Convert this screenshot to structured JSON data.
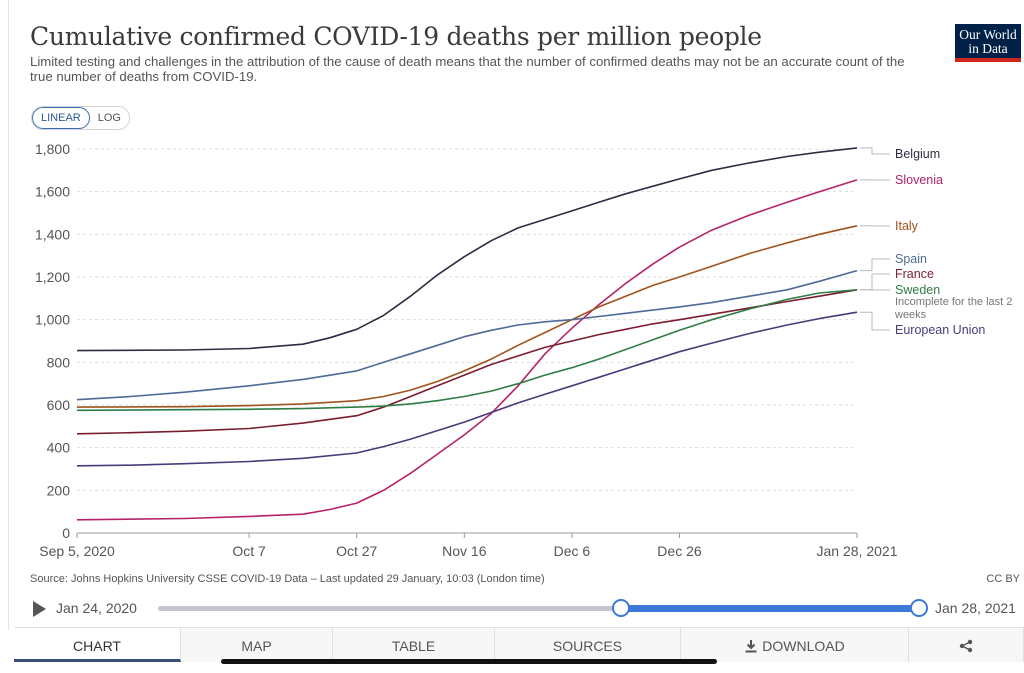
{
  "header": {
    "title": "Cumulative confirmed COVID-19 deaths per million people",
    "subtitle": "Limited testing and challenges in the attribution of the cause of death means that the number of confirmed deaths may not be an accurate count of the true number of deaths from COVID-19.",
    "logo_line1": "Our World",
    "logo_line2": "in Data"
  },
  "scale_toggle": {
    "linear_label": "LINEAR",
    "log_label": "LOG",
    "selected": "LINEAR"
  },
  "footer": {
    "source": "Source: Johns Hopkins University CSSE COVID-19 Data – Last updated 29 January, 10:03 (London time)",
    "license": "CC BY"
  },
  "timeline": {
    "start_label": "Jan 24, 2020",
    "end_label": "Jan 28, 2021"
  },
  "tabs": [
    {
      "label": "CHART",
      "active": true
    },
    {
      "label": "MAP"
    },
    {
      "label": "TABLE"
    },
    {
      "label": "SOURCES"
    },
    {
      "label": "DOWNLOAD",
      "icon": "download-icon"
    },
    {
      "label": "",
      "icon": "share-icon"
    }
  ],
  "colors": {
    "Belgium": "#2b2d42",
    "Slovenia": "#b4236a",
    "Italy": "#a0521c",
    "Spain": "#4f6a96",
    "France": "#7a1d2e",
    "Sweden": "#2e7d46",
    "European Union": "#4a3a7a",
    "accent": "#3b78d8",
    "logo_bg": "#002147",
    "logo_bar": "#ce261e"
  },
  "chart_data": {
    "type": "line",
    "title": "Cumulative confirmed COVID-19 deaths per million people",
    "ylim": [
      0,
      1800
    ],
    "yticks": [
      0,
      200,
      400,
      600,
      800,
      1000,
      1200,
      1400,
      1600,
      1800
    ],
    "ytick_labels": [
      "0",
      "200",
      "400",
      "600",
      "800",
      "1,000",
      "1,200",
      "1,400",
      "1,600",
      "1,800"
    ],
    "xlim": [
      "2020-09-05",
      "2021-01-28"
    ],
    "xticks": [
      "2020-09-05",
      "2020-10-07",
      "2020-10-27",
      "2020-11-16",
      "2020-12-06",
      "2020-12-26",
      "2021-01-28"
    ],
    "xtick_labels": [
      "Sep 5, 2020",
      "Oct 7",
      "Oct 27",
      "Nov 16",
      "Dec 6",
      "Dec 26",
      "Jan 28, 2021"
    ],
    "grid": "horizontal dashed",
    "legend": "right (labels at line ends)",
    "series": [
      {
        "name": "Belgium",
        "points": [
          [
            "2020-09-05",
            855
          ],
          [
            "2020-09-25",
            858
          ],
          [
            "2020-10-07",
            865
          ],
          [
            "2020-10-17",
            885
          ],
          [
            "2020-10-22",
            915
          ],
          [
            "2020-10-27",
            955
          ],
          [
            "2020-11-01",
            1020
          ],
          [
            "2020-11-06",
            1110
          ],
          [
            "2020-11-11",
            1210
          ],
          [
            "2020-11-16",
            1295
          ],
          [
            "2020-11-21",
            1370
          ],
          [
            "2020-11-26",
            1430
          ],
          [
            "2020-12-01",
            1470
          ],
          [
            "2020-12-06",
            1510
          ],
          [
            "2020-12-11",
            1550
          ],
          [
            "2020-12-16",
            1590
          ],
          [
            "2020-12-21",
            1625
          ],
          [
            "2020-12-26",
            1660
          ],
          [
            "2021-01-01",
            1700
          ],
          [
            "2021-01-08",
            1735
          ],
          [
            "2021-01-15",
            1765
          ],
          [
            "2021-01-21",
            1785
          ],
          [
            "2021-01-28",
            1805
          ]
        ]
      },
      {
        "name": "Slovenia",
        "points": [
          [
            "2020-09-05",
            62
          ],
          [
            "2020-09-25",
            68
          ],
          [
            "2020-10-07",
            78
          ],
          [
            "2020-10-17",
            88
          ],
          [
            "2020-10-22",
            110
          ],
          [
            "2020-10-27",
            140
          ],
          [
            "2020-11-01",
            200
          ],
          [
            "2020-11-06",
            280
          ],
          [
            "2020-11-11",
            370
          ],
          [
            "2020-11-16",
            460
          ],
          [
            "2020-11-21",
            560
          ],
          [
            "2020-11-26",
            690
          ],
          [
            "2020-12-01",
            840
          ],
          [
            "2020-12-06",
            960
          ],
          [
            "2020-12-11",
            1070
          ],
          [
            "2020-12-16",
            1170
          ],
          [
            "2020-12-21",
            1260
          ],
          [
            "2020-12-26",
            1340
          ],
          [
            "2021-01-01",
            1420
          ],
          [
            "2021-01-08",
            1490
          ],
          [
            "2021-01-15",
            1550
          ],
          [
            "2021-01-21",
            1600
          ],
          [
            "2021-01-28",
            1655
          ]
        ]
      },
      {
        "name": "Italy",
        "points": [
          [
            "2020-09-05",
            590
          ],
          [
            "2020-09-25",
            592
          ],
          [
            "2020-10-07",
            597
          ],
          [
            "2020-10-17",
            605
          ],
          [
            "2020-10-27",
            620
          ],
          [
            "2020-11-01",
            640
          ],
          [
            "2020-11-06",
            670
          ],
          [
            "2020-11-11",
            710
          ],
          [
            "2020-11-16",
            760
          ],
          [
            "2020-11-21",
            815
          ],
          [
            "2020-11-26",
            880
          ],
          [
            "2020-12-01",
            940
          ],
          [
            "2020-12-06",
            1000
          ],
          [
            "2020-12-11",
            1060
          ],
          [
            "2020-12-16",
            1110
          ],
          [
            "2020-12-21",
            1160
          ],
          [
            "2020-12-26",
            1200
          ],
          [
            "2021-01-01",
            1250
          ],
          [
            "2021-01-08",
            1310
          ],
          [
            "2021-01-15",
            1360
          ],
          [
            "2021-01-21",
            1400
          ],
          [
            "2021-01-28",
            1440
          ]
        ]
      },
      {
        "name": "Spain",
        "points": [
          [
            "2020-09-05",
            625
          ],
          [
            "2020-09-15",
            640
          ],
          [
            "2020-09-25",
            660
          ],
          [
            "2020-10-07",
            690
          ],
          [
            "2020-10-17",
            720
          ],
          [
            "2020-10-27",
            760
          ],
          [
            "2020-11-01",
            800
          ],
          [
            "2020-11-06",
            840
          ],
          [
            "2020-11-11",
            880
          ],
          [
            "2020-11-16",
            920
          ],
          [
            "2020-11-21",
            950
          ],
          [
            "2020-11-26",
            975
          ],
          [
            "2020-12-01",
            990
          ],
          [
            "2020-12-06",
            1000
          ],
          [
            "2020-12-11",
            1015
          ],
          [
            "2020-12-16",
            1030
          ],
          [
            "2020-12-21",
            1045
          ],
          [
            "2020-12-26",
            1060
          ],
          [
            "2021-01-01",
            1080
          ],
          [
            "2021-01-08",
            1110
          ],
          [
            "2021-01-15",
            1140
          ],
          [
            "2021-01-21",
            1180
          ],
          [
            "2021-01-28",
            1230
          ]
        ]
      },
      {
        "name": "France",
        "points": [
          [
            "2020-09-05",
            465
          ],
          [
            "2020-09-15",
            470
          ],
          [
            "2020-09-25",
            477
          ],
          [
            "2020-10-07",
            490
          ],
          [
            "2020-10-17",
            515
          ],
          [
            "2020-10-27",
            550
          ],
          [
            "2020-11-01",
            590
          ],
          [
            "2020-11-06",
            640
          ],
          [
            "2020-11-11",
            690
          ],
          [
            "2020-11-16",
            740
          ],
          [
            "2020-11-21",
            790
          ],
          [
            "2020-11-26",
            830
          ],
          [
            "2020-12-01",
            870
          ],
          [
            "2020-12-06",
            900
          ],
          [
            "2020-12-11",
            930
          ],
          [
            "2020-12-16",
            955
          ],
          [
            "2020-12-21",
            980
          ],
          [
            "2020-12-26",
            1000
          ],
          [
            "2021-01-01",
            1025
          ],
          [
            "2021-01-08",
            1055
          ],
          [
            "2021-01-15",
            1085
          ],
          [
            "2021-01-21",
            1110
          ],
          [
            "2021-01-28",
            1140
          ]
        ]
      },
      {
        "name": "Sweden",
        "points": [
          [
            "2020-09-05",
            575
          ],
          [
            "2020-09-25",
            578
          ],
          [
            "2020-10-07",
            580
          ],
          [
            "2020-10-17",
            583
          ],
          [
            "2020-10-27",
            590
          ],
          [
            "2020-11-01",
            595
          ],
          [
            "2020-11-06",
            605
          ],
          [
            "2020-11-11",
            620
          ],
          [
            "2020-11-16",
            640
          ],
          [
            "2020-11-21",
            665
          ],
          [
            "2020-11-26",
            700
          ],
          [
            "2020-12-01",
            740
          ],
          [
            "2020-12-06",
            775
          ],
          [
            "2020-12-11",
            815
          ],
          [
            "2020-12-16",
            860
          ],
          [
            "2020-12-21",
            905
          ],
          [
            "2020-12-26",
            950
          ],
          [
            "2021-01-01",
            1000
          ],
          [
            "2021-01-08",
            1050
          ],
          [
            "2021-01-15",
            1095
          ],
          [
            "2021-01-21",
            1125
          ],
          [
            "2021-01-28",
            1140
          ]
        ]
      },
      {
        "name": "European Union",
        "points": [
          [
            "2020-09-05",
            315
          ],
          [
            "2020-09-15",
            318
          ],
          [
            "2020-09-25",
            325
          ],
          [
            "2020-10-07",
            335
          ],
          [
            "2020-10-17",
            350
          ],
          [
            "2020-10-27",
            375
          ],
          [
            "2020-11-01",
            405
          ],
          [
            "2020-11-06",
            440
          ],
          [
            "2020-11-11",
            480
          ],
          [
            "2020-11-16",
            520
          ],
          [
            "2020-11-21",
            565
          ],
          [
            "2020-11-26",
            610
          ],
          [
            "2020-12-01",
            650
          ],
          [
            "2020-12-06",
            690
          ],
          [
            "2020-12-11",
            730
          ],
          [
            "2020-12-16",
            770
          ],
          [
            "2020-12-21",
            810
          ],
          [
            "2020-12-26",
            850
          ],
          [
            "2021-01-01",
            890
          ],
          [
            "2021-01-08",
            935
          ],
          [
            "2021-01-15",
            975
          ],
          [
            "2021-01-21",
            1005
          ],
          [
            "2021-01-28",
            1035
          ]
        ]
      }
    ],
    "annotations": [
      {
        "series": "Sweden",
        "text": "Incomplete for the last 2 weeks"
      }
    ]
  }
}
